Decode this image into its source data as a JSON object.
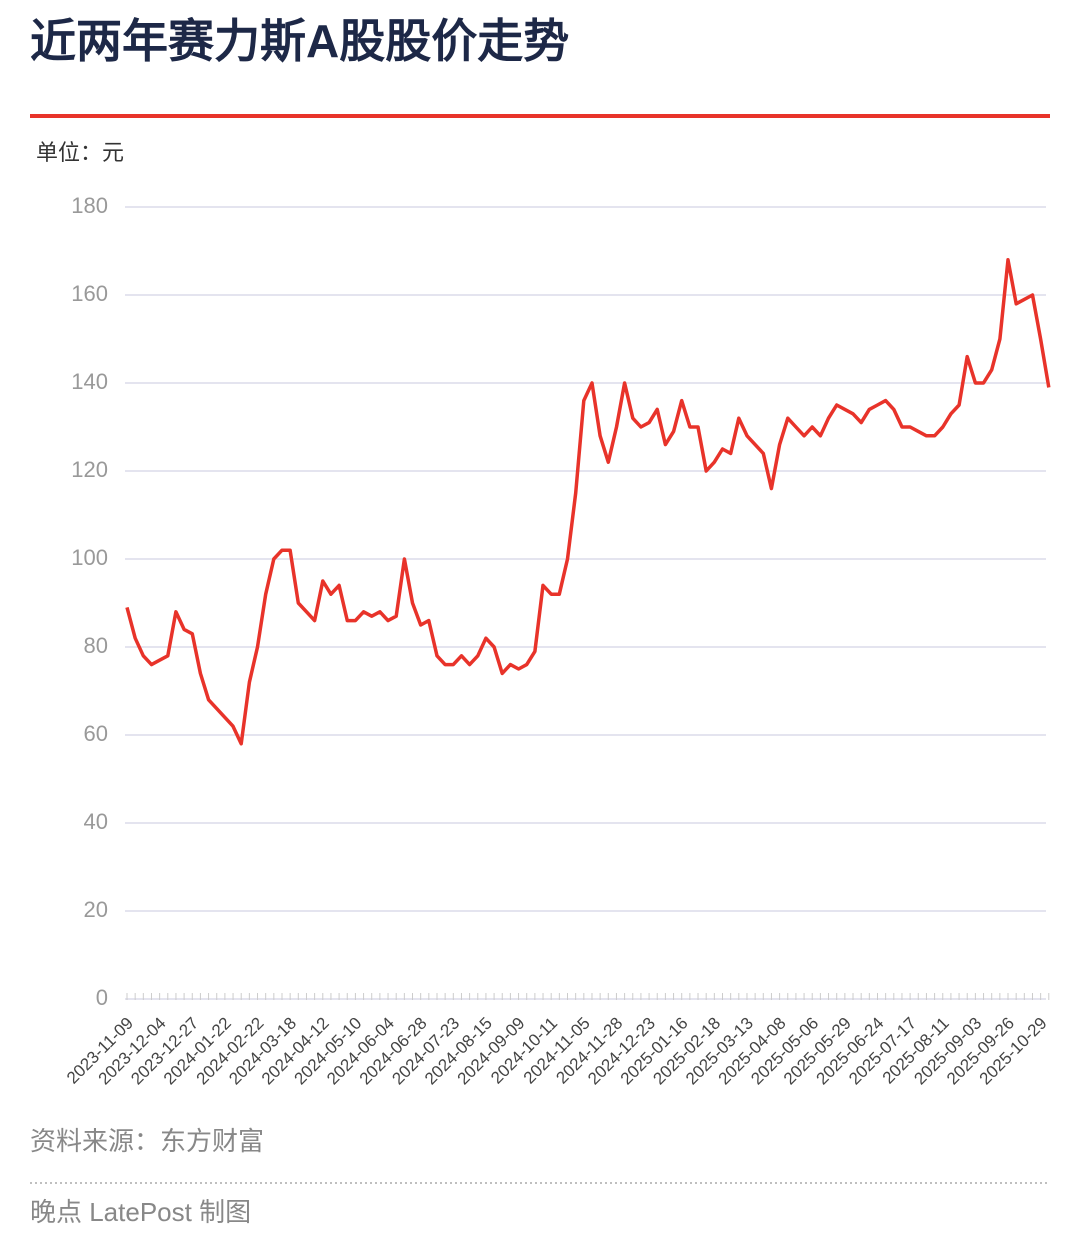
{
  "chart_data": {
    "type": "line",
    "title": "近两年赛力斯A股股价走势",
    "unit_label": "单位：元",
    "source": "资料来源：东方财富",
    "credit": "晚点 LatePost 制图",
    "color": "#e8332a",
    "grid": true,
    "ylim": [
      0,
      180
    ],
    "yticks": [
      0,
      20,
      40,
      60,
      80,
      100,
      120,
      140,
      160,
      180
    ],
    "categories": [
      "2023-11-09",
      null,
      null,
      null,
      "2023-12-04",
      null,
      null,
      null,
      "2023-12-27",
      null,
      null,
      null,
      "2024-01-22",
      null,
      null,
      null,
      "2024-02-22",
      null,
      null,
      null,
      "2024-03-18",
      null,
      null,
      null,
      "2024-04-12",
      null,
      null,
      null,
      "2024-05-10",
      null,
      null,
      null,
      "2024-06-04",
      null,
      null,
      null,
      "2024-06-28",
      null,
      null,
      null,
      "2024-07-23",
      null,
      null,
      null,
      "2024-08-15",
      null,
      null,
      null,
      "2024-09-09",
      null,
      null,
      null,
      "2024-10-11",
      null,
      null,
      null,
      "2024-11-05",
      null,
      null,
      null,
      "2024-11-28",
      null,
      null,
      null,
      "2024-12-23",
      null,
      null,
      null,
      "2025-01-16",
      null,
      null,
      null,
      "2025-02-18",
      null,
      null,
      null,
      "2025-03-13",
      null,
      null,
      null,
      "2025-04-08",
      null,
      null,
      null,
      "2025-05-06",
      null,
      null,
      null,
      "2025-05-29",
      null,
      null,
      null,
      "2025-06-24",
      null,
      null,
      null,
      "2025-07-17",
      null,
      null,
      null,
      "2025-08-11",
      null,
      null,
      null,
      "2025-09-03",
      null,
      null,
      null,
      "2025-09-26",
      null,
      null,
      null,
      "2025-10-29",
      null
    ],
    "values": [
      89,
      82,
      78,
      76,
      77,
      78,
      88,
      84,
      83,
      74,
      68,
      66,
      64,
      62,
      58,
      72,
      80,
      92,
      100,
      102,
      102,
      90,
      88,
      86,
      95,
      92,
      94,
      86,
      86,
      88,
      87,
      88,
      86,
      87,
      100,
      90,
      85,
      86,
      78,
      76,
      76,
      78,
      76,
      78,
      82,
      80,
      74,
      76,
      75,
      76,
      79,
      94,
      92,
      92,
      100,
      115,
      136,
      140,
      128,
      122,
      130,
      140,
      132,
      130,
      131,
      134,
      126,
      129,
      136,
      130,
      130,
      120,
      122,
      125,
      124,
      132,
      128,
      126,
      124,
      116,
      126,
      132,
      130,
      128,
      130,
      128,
      132,
      135,
      134,
      133,
      131,
      134,
      135,
      136,
      134,
      130,
      130,
      129,
      128,
      128,
      130,
      133,
      135,
      146,
      140,
      140,
      143,
      150,
      168,
      158,
      159,
      160,
      150,
      139
    ]
  }
}
